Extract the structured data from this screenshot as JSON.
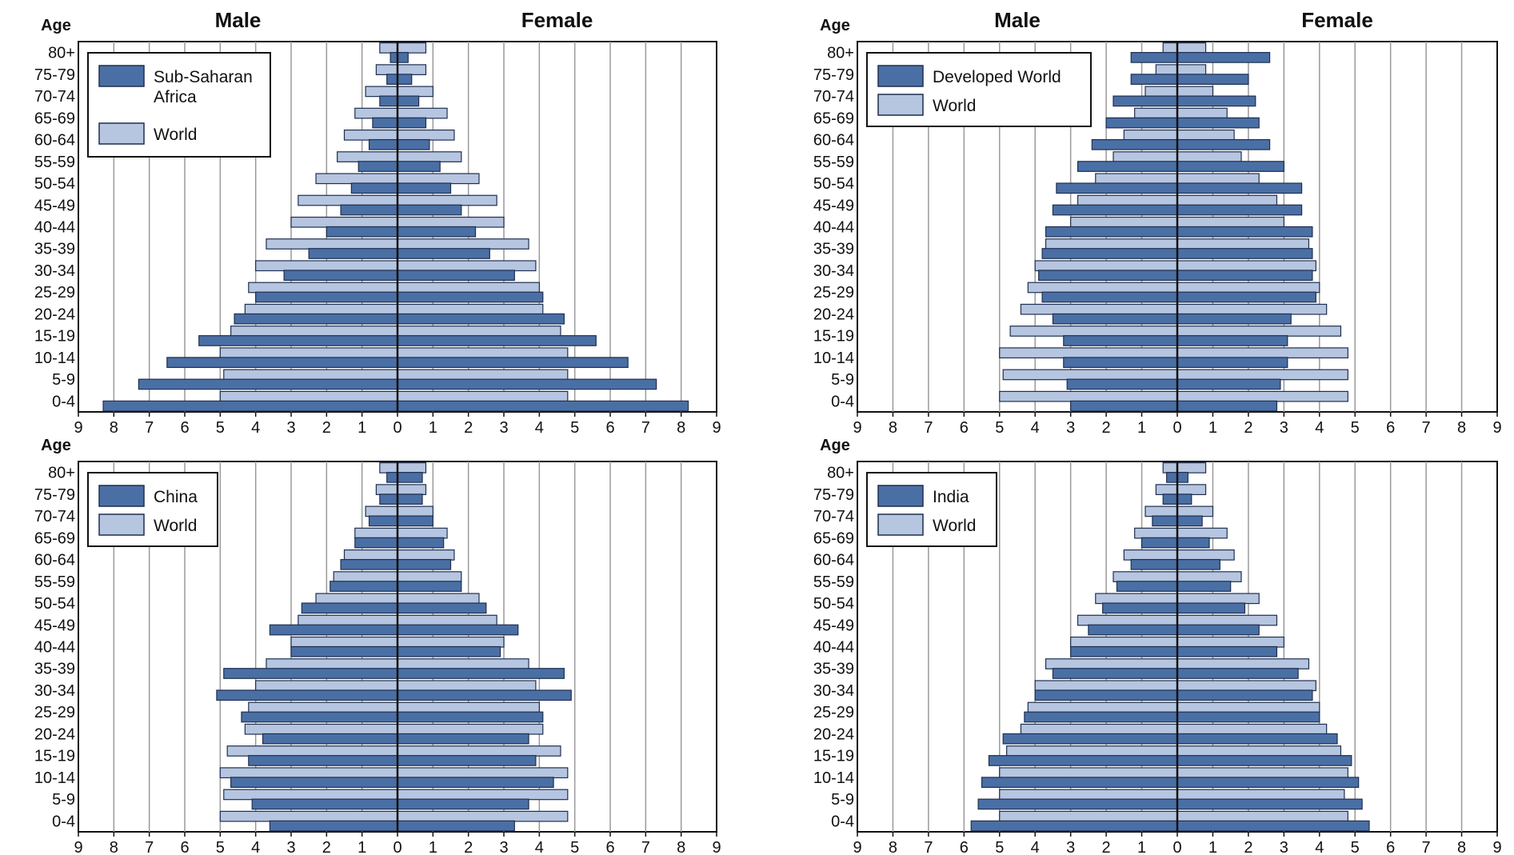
{
  "ages": [
    "80+",
    "75-79",
    "70-74",
    "65-69",
    "60-64",
    "55-59",
    "50-54",
    "45-49",
    "40-44",
    "35-39",
    "30-34",
    "25-29",
    "20-24",
    "15-19",
    "10-14",
    "5-9",
    "0-4"
  ],
  "labels": {
    "male": "Male",
    "female": "Female",
    "age": "Age"
  },
  "colors": {
    "primary": "#4a6fa5",
    "world": "#b6c5e0",
    "edge": "#1f2f4f"
  },
  "chart_data": [
    {
      "type": "bar",
      "orientation": "horizontal-population-pyramid",
      "xlim": [
        -9,
        9
      ],
      "x_ticks": [
        "9",
        "8",
        "7",
        "6",
        "5",
        "4",
        "3",
        "2",
        "1",
        "0",
        "1",
        "2",
        "3",
        "4",
        "5",
        "6",
        "7",
        "8",
        "9"
      ],
      "legend": {
        "primary": "Sub-Saharan Africa",
        "world": "World",
        "placement": "top-left"
      },
      "series": [
        {
          "name": "Sub-Saharan Africa",
          "male": [
            0.2,
            0.3,
            0.5,
            0.7,
            0.8,
            1.1,
            1.3,
            1.6,
            2.0,
            2.5,
            3.2,
            4.0,
            4.6,
            5.6,
            6.5,
            7.3,
            8.3
          ],
          "female": [
            0.3,
            0.4,
            0.6,
            0.8,
            0.9,
            1.2,
            1.5,
            1.8,
            2.2,
            2.6,
            3.3,
            4.1,
            4.7,
            5.6,
            6.5,
            7.3,
            8.2
          ]
        },
        {
          "name": "World",
          "male": [
            0.5,
            0.6,
            0.9,
            1.2,
            1.5,
            1.7,
            2.3,
            2.8,
            3.0,
            3.7,
            4.0,
            4.2,
            4.3,
            4.7,
            5.0,
            4.9,
            5.0
          ],
          "female": [
            0.8,
            0.8,
            1.0,
            1.4,
            1.6,
            1.8,
            2.3,
            2.8,
            3.0,
            3.7,
            3.9,
            4.0,
            4.1,
            4.6,
            4.8,
            4.8,
            4.8
          ]
        }
      ]
    },
    {
      "type": "bar",
      "orientation": "horizontal-population-pyramid",
      "xlim": [
        -9,
        9
      ],
      "x_ticks": [
        "9",
        "8",
        "7",
        "6",
        "5",
        "4",
        "3",
        "2",
        "1",
        "0",
        "1",
        "2",
        "3",
        "4",
        "5",
        "6",
        "7",
        "8",
        "9"
      ],
      "legend": {
        "primary": "Developed World",
        "world": "World",
        "placement": "top-left"
      },
      "series": [
        {
          "name": "Developed World",
          "male": [
            1.3,
            1.3,
            1.8,
            2.0,
            2.4,
            2.8,
            3.4,
            3.5,
            3.7,
            3.8,
            3.9,
            3.8,
            3.5,
            3.2,
            3.2,
            3.1,
            3.0
          ],
          "female": [
            2.6,
            2.0,
            2.2,
            2.3,
            2.6,
            3.0,
            3.5,
            3.5,
            3.8,
            3.8,
            3.8,
            3.9,
            3.2,
            3.1,
            3.1,
            2.9,
            2.8
          ]
        },
        {
          "name": "World",
          "male": [
            0.4,
            0.6,
            0.9,
            1.2,
            1.5,
            1.8,
            2.3,
            2.8,
            3.0,
            3.7,
            4.0,
            4.2,
            4.4,
            4.7,
            5.0,
            4.9,
            5.0
          ],
          "female": [
            0.8,
            0.8,
            1.0,
            1.4,
            1.6,
            1.8,
            2.3,
            2.8,
            3.0,
            3.7,
            3.9,
            4.0,
            4.2,
            4.6,
            4.8,
            4.8,
            4.8
          ]
        }
      ]
    },
    {
      "type": "bar",
      "orientation": "horizontal-population-pyramid",
      "xlim": [
        -9,
        9
      ],
      "x_ticks": [
        "9",
        "8",
        "7",
        "6",
        "5",
        "4",
        "3",
        "2",
        "1",
        "0",
        "1",
        "2",
        "3",
        "4",
        "5",
        "6",
        "7",
        "8",
        "9"
      ],
      "legend": {
        "primary": "China",
        "world": "World",
        "placement": "top-left"
      },
      "series": [
        {
          "name": "China",
          "male": [
            0.3,
            0.5,
            0.8,
            1.2,
            1.6,
            1.9,
            2.7,
            3.6,
            3.0,
            4.9,
            5.1,
            4.4,
            3.8,
            4.2,
            4.7,
            4.1,
            3.6
          ],
          "female": [
            0.7,
            0.7,
            1.0,
            1.3,
            1.5,
            1.8,
            2.5,
            3.4,
            2.9,
            4.7,
            4.9,
            4.1,
            3.7,
            3.9,
            4.4,
            3.7,
            3.3
          ]
        },
        {
          "name": "World",
          "male": [
            0.5,
            0.6,
            0.9,
            1.2,
            1.5,
            1.8,
            2.3,
            2.8,
            3.0,
            3.7,
            4.0,
            4.2,
            4.3,
            4.8,
            5.0,
            4.9,
            5.0
          ],
          "female": [
            0.8,
            0.8,
            1.0,
            1.4,
            1.6,
            1.8,
            2.3,
            2.8,
            3.0,
            3.7,
            3.9,
            4.0,
            4.1,
            4.6,
            4.8,
            4.8,
            4.8
          ]
        }
      ]
    },
    {
      "type": "bar",
      "orientation": "horizontal-population-pyramid",
      "xlim": [
        -9,
        9
      ],
      "x_ticks": [
        "9",
        "8",
        "7",
        "6",
        "5",
        "4",
        "3",
        "2",
        "1",
        "0",
        "1",
        "2",
        "3",
        "4",
        "5",
        "6",
        "7",
        "8",
        "9"
      ],
      "legend": {
        "primary": "India",
        "world": "World",
        "placement": "top-left"
      },
      "series": [
        {
          "name": "India",
          "male": [
            0.3,
            0.4,
            0.7,
            1.0,
            1.3,
            1.7,
            2.1,
            2.5,
            3.0,
            3.5,
            4.0,
            4.3,
            4.9,
            5.3,
            5.5,
            5.6,
            5.8
          ],
          "female": [
            0.3,
            0.4,
            0.7,
            0.9,
            1.2,
            1.5,
            1.9,
            2.3,
            2.8,
            3.4,
            3.8,
            4.0,
            4.5,
            4.9,
            5.1,
            5.2,
            5.4
          ]
        },
        {
          "name": "World",
          "male": [
            0.4,
            0.6,
            0.9,
            1.2,
            1.5,
            1.8,
            2.3,
            2.8,
            3.0,
            3.7,
            4.0,
            4.2,
            4.4,
            4.8,
            5.0,
            5.0,
            5.0
          ],
          "female": [
            0.8,
            0.8,
            1.0,
            1.4,
            1.6,
            1.8,
            2.3,
            2.8,
            3.0,
            3.7,
            3.9,
            4.0,
            4.2,
            4.6,
            4.8,
            4.7,
            4.8
          ]
        }
      ]
    }
  ]
}
